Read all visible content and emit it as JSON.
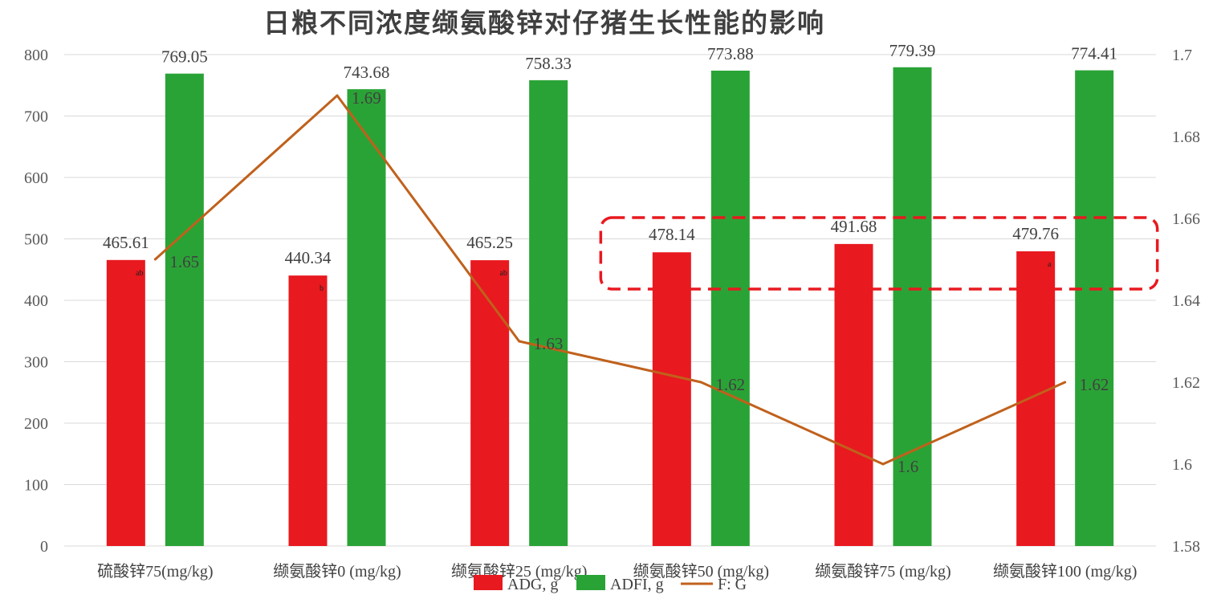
{
  "colors": {
    "adg": "#e8191f",
    "adfi": "#2aa336",
    "fg": "#c0611c",
    "highlight_box": "#e8191f",
    "grid": "#d9d9d9",
    "text": "#404040"
  },
  "chart_data": {
    "type": "bar",
    "title": "日粮不同浓度缬氨酸锌对仔猪生长性能的影响",
    "categories": [
      "硫酸锌75(mg/kg)",
      "缬氨酸锌0 (mg/kg)",
      "缬氨酸锌25 (mg/kg)",
      "缬氨酸锌50 (mg/kg)",
      "缬氨酸锌75 (mg/kg)",
      "缬氨酸锌100 (mg/kg)"
    ],
    "series": [
      {
        "name": "ADG, g",
        "type": "bar",
        "axis": "left",
        "color": "#e8191f",
        "values": [
          465.61,
          440.34,
          465.25,
          478.14,
          491.68,
          479.76
        ],
        "labels": [
          "465.61",
          "440.34",
          "465.25",
          "478.14",
          "491.68",
          "479.76"
        ],
        "significance": [
          "ab",
          "b",
          "ab",
          "",
          "",
          "a"
        ]
      },
      {
        "name": "ADFI, g",
        "type": "bar",
        "axis": "left",
        "color": "#2aa336",
        "values": [
          769.05,
          743.68,
          758.33,
          773.88,
          779.39,
          774.41
        ],
        "labels": [
          "769.05",
          "743.68",
          "758.33",
          "773.88",
          "779.39",
          "774.41"
        ]
      },
      {
        "name": "F: G",
        "type": "line",
        "axis": "right",
        "color": "#c0611c",
        "values": [
          1.65,
          1.69,
          1.63,
          1.62,
          1.6,
          1.62
        ],
        "labels": [
          "1.65",
          "1.69",
          "1.63",
          "1.62",
          "1.6",
          "1.62"
        ]
      }
    ],
    "y_left": {
      "min": 0,
      "max": 800,
      "step": 100,
      "ticks": [
        "0",
        "100",
        "200",
        "300",
        "400",
        "500",
        "600",
        "700",
        "800"
      ]
    },
    "y_right": {
      "min": 1.58,
      "max": 1.7,
      "step": 0.02,
      "ticks": [
        "1.58",
        "1.6",
        "1.62",
        "1.64",
        "1.66",
        "1.68",
        "1.7"
      ]
    },
    "grid": true,
    "legend_position": "bottom",
    "highlight": {
      "style": "dashed rounded box",
      "categories": [
        3,
        4,
        5
      ],
      "around": "ADG bars"
    }
  }
}
